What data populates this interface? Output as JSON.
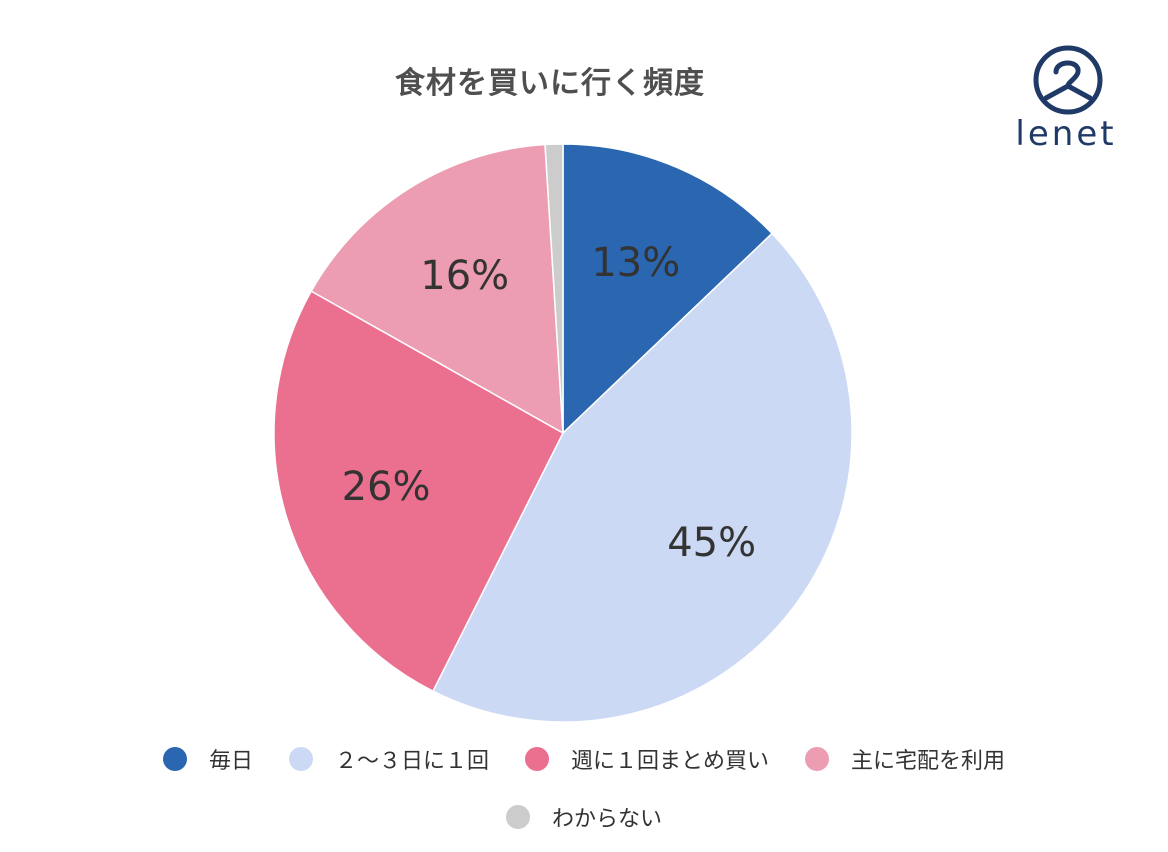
{
  "chart_data": {
    "type": "pie",
    "title": "食材を買いに行く頻度",
    "categories": [
      "毎日",
      "２〜３日に１回",
      "週に１回まとめ買い",
      "主に宅配を利用",
      "わからない"
    ],
    "values": [
      13,
      45,
      26,
      16,
      1
    ],
    "labels": [
      "13%",
      "45%",
      "26%",
      "16%",
      ""
    ],
    "colors": [
      "#2b66b0",
      "#cbd9f4",
      "#eb7090",
      "#ec9db2",
      "#cccccc"
    ],
    "legend_position": "bottom",
    "start_angle": "top",
    "direction": "clockwise"
  },
  "logo": {
    "text": "lenet",
    "icon": "hanger-person-icon"
  }
}
